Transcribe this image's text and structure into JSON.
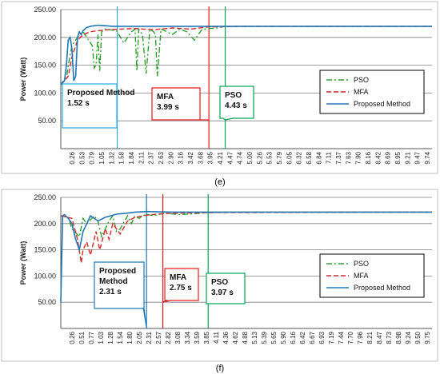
{
  "chart_data": [
    {
      "type": "line",
      "caption": "(e)",
      "ylabel": "Power (Watt)",
      "xlabel": "",
      "ylim": [
        0,
        250
      ],
      "xlim": [
        0,
        10
      ],
      "y_ticks": [
        "250.00",
        "200.00",
        "150.00",
        "100.00",
        "50.00"
      ],
      "x_ticks": [
        "0.26",
        "0.53",
        "0.79",
        "1.05",
        "1.32",
        "1.58",
        "1.84",
        "2.11",
        "2.37",
        "2.63",
        "2.90",
        "3.16",
        "3.42",
        "3.68",
        "3.95",
        "4.21",
        "4.47",
        "4.74",
        "5.00",
        "5.26",
        "5.53",
        "5.79",
        "6.05",
        "6.32",
        "6.58",
        "6.84",
        "7.11",
        "7.37",
        "7.63",
        "7.90",
        "8.16",
        "8.42",
        "8.69",
        "8.95",
        "9.21",
        "9.47",
        "9.74"
      ],
      "grid": true,
      "legend_position": "right",
      "series": [
        {
          "name": "PSO",
          "color": "#2ca02c",
          "style": "dashdot",
          "x": [
            0,
            0.15,
            0.2,
            0.3,
            0.45,
            0.6,
            0.7,
            0.85,
            0.9,
            0.95,
            1.0,
            1.05,
            1.1,
            1.2,
            1.5,
            1.7,
            1.9,
            2.0,
            2.05,
            2.1,
            2.2,
            2.3,
            2.4,
            2.5,
            2.55,
            2.6,
            2.7,
            2.8,
            3.0,
            3.2,
            3.4,
            3.6,
            3.8,
            4.0,
            4.2,
            4.43,
            5,
            10
          ],
          "y": [
            115,
            125,
            150,
            185,
            200,
            210,
            200,
            185,
            145,
            150,
            205,
            140,
            210,
            215,
            212,
            190,
            210,
            215,
            140,
            215,
            205,
            135,
            215,
            210,
            205,
            130,
            215,
            212,
            205,
            215,
            210,
            195,
            214,
            216,
            217,
            220,
            220,
            220
          ]
        },
        {
          "name": "MFA",
          "color": "#d62728",
          "style": "dashed",
          "x": [
            0,
            0.2,
            0.3,
            0.45,
            0.6,
            0.8,
            1.0,
            1.3,
            1.6,
            2.0,
            2.5,
            3.0,
            3.5,
            3.99,
            5,
            10
          ],
          "y": [
            115,
            130,
            165,
            195,
            205,
            210,
            212,
            214,
            215,
            216,
            214,
            217,
            215,
            219,
            220,
            220
          ]
        },
        {
          "name": "Proposed Method",
          "color": "#1f77b4",
          "style": "solid",
          "x": [
            0,
            0.05,
            0.1,
            0.15,
            0.2,
            0.25,
            0.3,
            0.35,
            0.4,
            0.45,
            0.5,
            0.55,
            0.6,
            0.7,
            0.8,
            1.0,
            1.2,
            1.4,
            1.52,
            2.0,
            3.0,
            5,
            10
          ],
          "y": [
            115,
            120,
            122,
            150,
            195,
            200,
            180,
            122,
            130,
            200,
            210,
            205,
            212,
            218,
            220,
            222,
            221,
            220,
            220,
            220,
            220,
            220,
            220
          ]
        }
      ],
      "annotations": [
        {
          "label": "Proposed Method\n1.52 s",
          "x": 1.52,
          "color": "#29abe2"
        },
        {
          "label": "MFA\n3.99 s",
          "x": 3.99,
          "color": "#e31a1c"
        },
        {
          "label": "PSO\n4.43 s",
          "x": 4.43,
          "color": "#00a651"
        }
      ]
    },
    {
      "type": "line",
      "caption": "(f)",
      "ylabel": "Power (Watt)",
      "xlabel": "",
      "ylim": [
        0,
        250
      ],
      "xlim": [
        0,
        10
      ],
      "y_ticks": [
        "250.00",
        "200.00",
        "150.00",
        "100.00",
        "50.00"
      ],
      "x_ticks": [
        "0.26",
        "0.51",
        "0.77",
        "1.03",
        "1.28",
        "1.54",
        "1.80",
        "2.05",
        "2.31",
        "2.57",
        "2.82",
        "3.08",
        "3.34",
        "3.59",
        "3.85",
        "4.11",
        "4.36",
        "4.62",
        "4.88",
        "5.13",
        "5.39",
        "5.65",
        "5.90",
        "6.16",
        "6.42",
        "6.67",
        "6.93",
        "7.19",
        "7.44",
        "7.70",
        "7.96",
        "8.21",
        "8.47",
        "8.73",
        "8.98",
        "9.24",
        "9.50",
        "9.75"
      ],
      "grid": true,
      "legend_position": "right",
      "series": [
        {
          "name": "PSO",
          "color": "#2ca02c",
          "style": "dashdot",
          "x": [
            0,
            0.2,
            0.3,
            0.5,
            0.6,
            0.7,
            0.9,
            1.0,
            1.1,
            1.3,
            1.4,
            1.5,
            1.6,
            1.8,
            1.9,
            2.0,
            2.1,
            2.3,
            2.5,
            2.8,
            3.2,
            3.6,
            3.97,
            5,
            10
          ],
          "y": [
            215,
            212,
            190,
            175,
            210,
            200,
            215,
            205,
            175,
            205,
            215,
            185,
            190,
            215,
            200,
            215,
            210,
            218,
            215,
            220,
            217,
            219,
            221,
            222,
            222
          ]
        },
        {
          "name": "MFA",
          "color": "#d62728",
          "style": "dashed",
          "x": [
            0,
            0.3,
            0.45,
            0.55,
            0.6,
            0.7,
            0.8,
            0.95,
            1.05,
            1.2,
            1.3,
            1.4,
            1.6,
            1.8,
            2.0,
            2.3,
            2.75,
            3.2,
            4,
            10
          ],
          "y": [
            215,
            210,
            170,
            125,
            150,
            165,
            140,
            185,
            150,
            190,
            170,
            200,
            180,
            205,
            212,
            216,
            219,
            220,
            221,
            222
          ]
        },
        {
          "name": "Proposed Method",
          "color": "#1f77b4",
          "style": "solid",
          "x": [
            0,
            0.05,
            0.1,
            0.2,
            0.3,
            0.4,
            0.5,
            0.6,
            0.7,
            0.8,
            1.0,
            1.2,
            1.5,
            1.8,
            2.0,
            2.31,
            3.0,
            5,
            10
          ],
          "y": [
            50,
            215,
            217,
            210,
            200,
            170,
            150,
            185,
            200,
            215,
            205,
            212,
            218,
            220,
            222,
            223,
            222,
            222,
            222
          ]
        }
      ],
      "annotations": [
        {
          "label": "Proposed\nMethod\n2.31 s",
          "x": 2.31,
          "color": "#1f77b4"
        },
        {
          "label": "MFA\n2.75 s",
          "x": 2.75,
          "color": "#e31a1c"
        },
        {
          "label": "PSO\n3.97 s",
          "x": 3.97,
          "color": "#00a651"
        }
      ]
    }
  ]
}
